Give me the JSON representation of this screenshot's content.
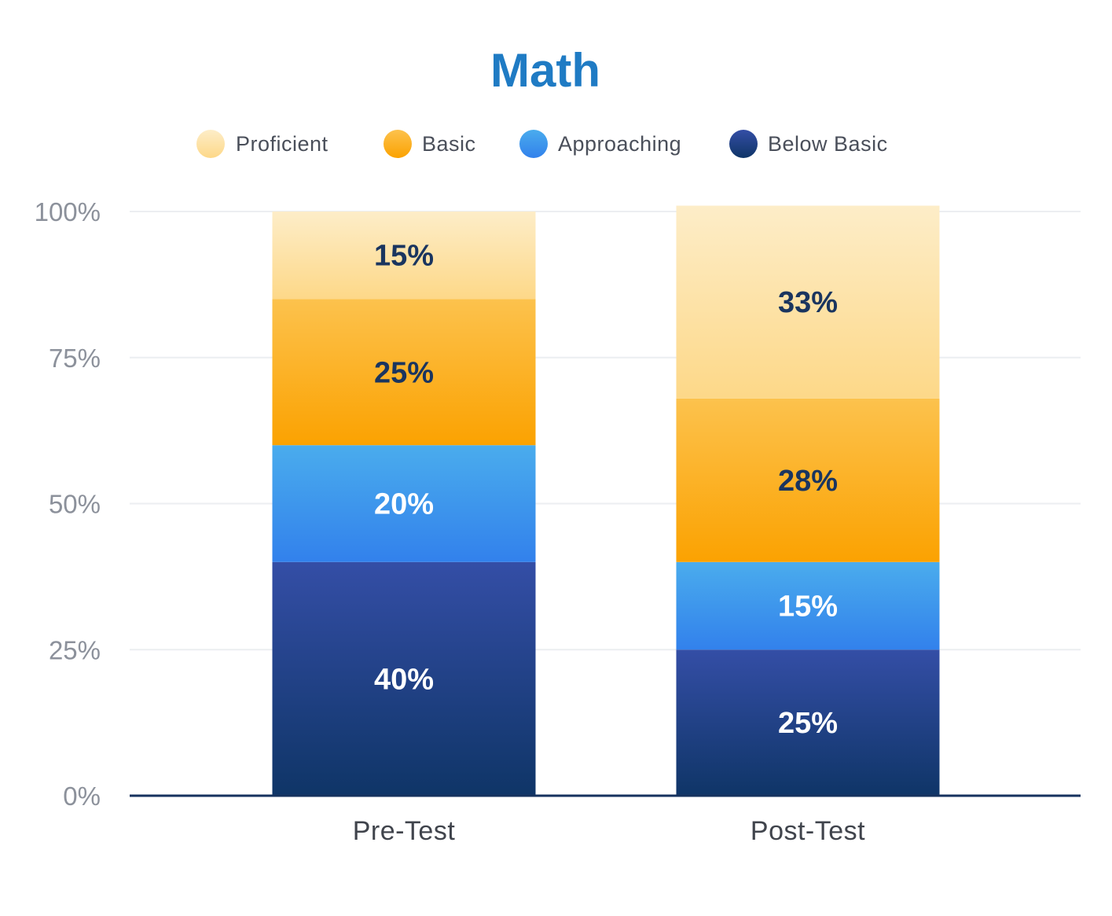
{
  "chart_data": {
    "type": "bar",
    "stacked": true,
    "title": "Math",
    "categories": [
      "Pre-Test",
      "Post-Test"
    ],
    "series": [
      {
        "name": "Below Basic",
        "values": [
          40,
          25
        ],
        "label_color": "#ffffff"
      },
      {
        "name": "Approaching",
        "values": [
          20,
          15
        ],
        "label_color": "#ffffff"
      },
      {
        "name": "Basic",
        "values": [
          25,
          28
        ],
        "label_color": "#1a355f"
      },
      {
        "name": "Proficient",
        "values": [
          15,
          33
        ],
        "label_color": "#1a355f"
      }
    ],
    "legend_order": [
      "Proficient",
      "Basic",
      "Approaching",
      "Below Basic"
    ],
    "data_labels": [
      [
        "40%",
        "25%"
      ],
      [
        "20%",
        "15%"
      ],
      [
        "25%",
        "28%"
      ],
      [
        "15%",
        "33%"
      ]
    ],
    "yticks": [
      "0%",
      "25%",
      "50%",
      "75%",
      "100%"
    ],
    "ytick_values": [
      0,
      25,
      50,
      75,
      100
    ],
    "ylim": [
      0,
      100
    ],
    "legend_position": "top",
    "grid": true,
    "xlabel": "",
    "ylabel": ""
  },
  "colors": {
    "title": "#1f7bc4",
    "Proficient": [
      "#fdedc8",
      "#fdd888"
    ],
    "Basic": [
      "#fcc24d",
      "#fba201"
    ],
    "Approaching": [
      "#4aaced",
      "#3281ec"
    ],
    "Below Basic": [
      "#344ea6",
      "#0f3567"
    ]
  }
}
